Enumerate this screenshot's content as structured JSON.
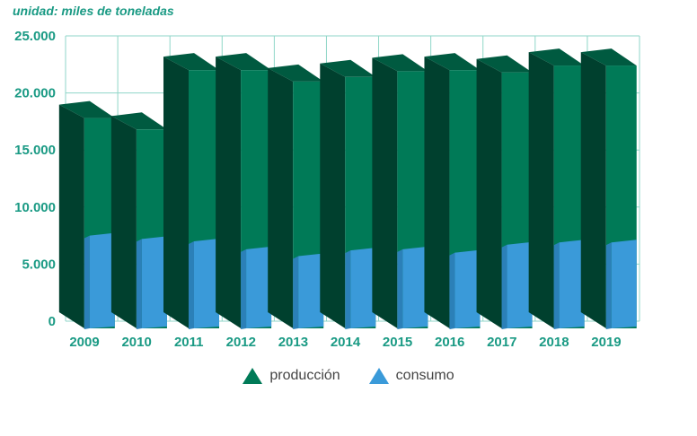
{
  "chart_data": {
    "type": "bar",
    "unit_note": "unidad: miles de toneladas",
    "categories": [
      "2009",
      "2010",
      "2011",
      "2012",
      "2013",
      "2014",
      "2015",
      "2016",
      "2017",
      "2018",
      "2019"
    ],
    "series": [
      {
        "name": "producción",
        "color": "#007a57",
        "values": [
          17800,
          16800,
          22000,
          22000,
          21000,
          21400,
          21900,
          22000,
          21800,
          22400,
          22400
        ]
      },
      {
        "name": "consumo",
        "color": "#3a9ad9",
        "values": [
          7500,
          7200,
          7000,
          6300,
          5700,
          6200,
          6300,
          6000,
          6700,
          6900,
          6900
        ]
      }
    ],
    "yticks": [
      "0",
      "5.000",
      "10.000",
      "15.000",
      "20.000",
      "25.000"
    ],
    "ylim": [
      0,
      25000
    ],
    "grid": true,
    "legend_position": "bottom"
  }
}
